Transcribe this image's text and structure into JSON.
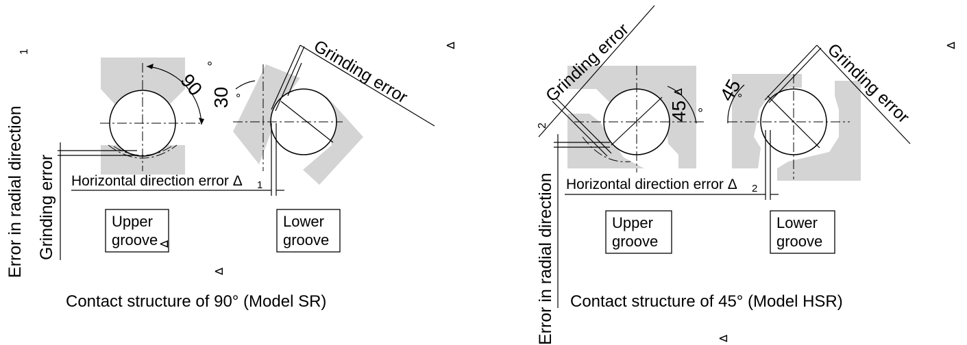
{
  "left": {
    "radial_error_1": "Error in radial direction",
    "radial_error_1_num": "1",
    "grinding_error_vertical": "Grinding error",
    "angle_90": "90",
    "deg_mark": "°",
    "angle_30": "30",
    "grinding_error_diag": "Grinding error",
    "horizontal_error": "Horizontal direction error Δ",
    "horizontal_error_sub": "1",
    "upper_groove": [
      "Upper",
      "groove"
    ],
    "lower_groove": [
      "Lower",
      "groove"
    ],
    "caption": "Contact structure of 90° (Model SR)",
    "delta_mark": "⊲"
  },
  "right": {
    "radial_error_2": "Error in radial direction",
    "radial_error_2_num": "2",
    "grinding_error_left": "Grinding error",
    "grinding_error_right": "Grinding error",
    "angle_45a": "45",
    "angle_45b": "45",
    "deg_mark": "°",
    "horizontal_error": "Horizontal direction error Δ",
    "horizontal_error_sub": "2",
    "upper_groove": [
      "Upper",
      "groove"
    ],
    "lower_groove": [
      "Lower",
      "groove"
    ],
    "caption": "Contact structure of 45° (Model HSR)",
    "delta_mark": "⊲"
  }
}
